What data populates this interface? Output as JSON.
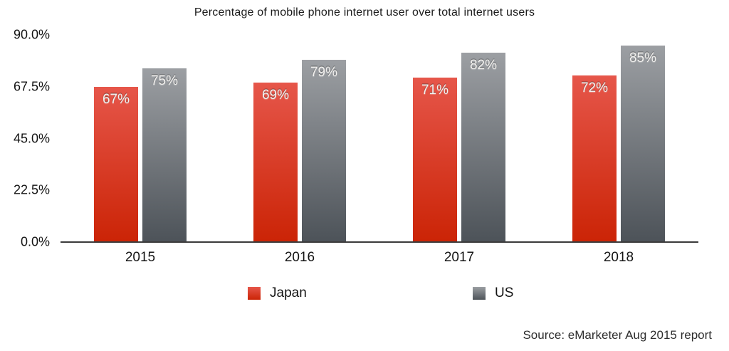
{
  "chart_data": {
    "type": "bar",
    "title": "Percentage of mobile phone internet user over total internet users",
    "categories": [
      "2015",
      "2016",
      "2017",
      "2018"
    ],
    "series": [
      {
        "name": "Japan",
        "values": [
          67,
          69,
          71,
          72
        ],
        "labels": [
          "67%",
          "69%",
          "71%",
          "72%"
        ],
        "color_top": "#e6564a",
        "color_bottom": "#cb2406"
      },
      {
        "name": "US",
        "values": [
          75,
          79,
          82,
          85
        ],
        "labels": [
          "75%",
          "79%",
          "82%",
          "85%"
        ],
        "color_top": "#9c9fa3",
        "color_bottom": "#4d5359"
      }
    ],
    "xlabel": "",
    "ylabel": "",
    "ylim": [
      0,
      90
    ],
    "yticks": [
      0,
      22.5,
      45,
      67.5,
      90
    ],
    "ytick_labels": [
      "0.0%",
      "22.5%",
      "45.0%",
      "67.5%",
      "90.0%"
    ],
    "grid": false,
    "legend_position": "bottom",
    "source": "Source: eMarketer Aug 2015 report",
    "axis_color": "#3b3b3b",
    "background_color": "#ffffff"
  }
}
